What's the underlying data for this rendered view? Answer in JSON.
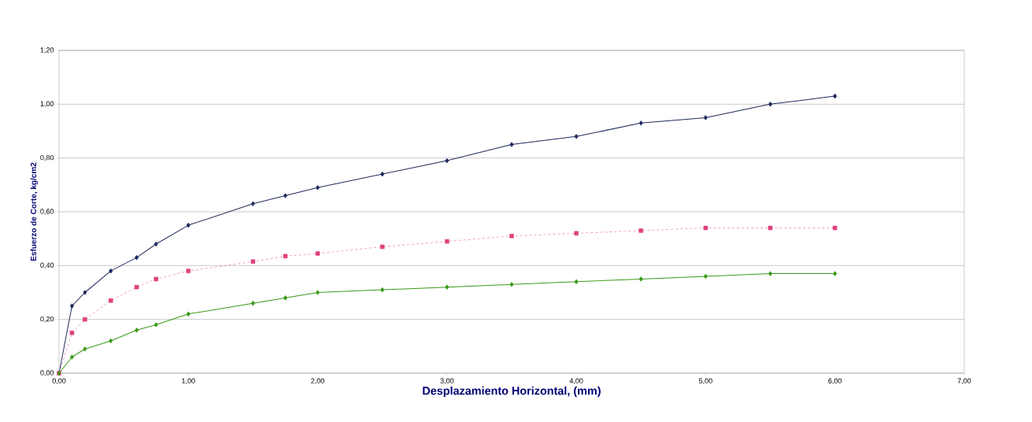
{
  "chart_data": {
    "type": "line",
    "xlabel": "Desplazamiento Horizontal,  (mm)",
    "ylabel": "Esfuerzo de Corte, kg/cm2",
    "x": [
      0,
      0.1,
      0.2,
      0.4,
      0.6,
      0.75,
      1,
      1.5,
      1.75,
      2,
      2.5,
      3,
      3.5,
      4,
      4.5,
      5,
      5.5,
      6
    ],
    "series": [
      {
        "color": "#1f2a5c",
        "marker": "diamond",
        "line_style": "solid",
        "values": [
          0,
          0.25,
          0.3,
          0.38,
          0.43,
          0.48,
          0.55,
          0.63,
          0.66,
          0.69,
          0.74,
          0.79,
          0.85,
          0.88,
          0.93,
          0.95,
          1.0,
          1.03
        ]
      },
      {
        "color": "#e0407f",
        "marker": "square",
        "line_style": "dashed",
        "values": [
          0,
          0.15,
          0.2,
          0.27,
          0.32,
          0.35,
          0.38,
          0.415,
          0.435,
          0.445,
          0.47,
          0.49,
          0.51,
          0.52,
          0.53,
          0.54,
          0.54,
          0.54
        ]
      },
      {
        "color": "#3a9a1a",
        "marker": "diamond",
        "line_style": "solid",
        "values": [
          0,
          0.06,
          0.09,
          0.12,
          0.16,
          0.18,
          0.22,
          0.26,
          0.28,
          0.3,
          0.31,
          0.32,
          0.33,
          0.34,
          0.35,
          0.36,
          0.37,
          0.37
        ]
      }
    ],
    "xlim": [
      0,
      7
    ],
    "ylim": [
      0,
      1.2
    ],
    "xticks": [
      {
        "value": 0,
        "label": "0,00"
      },
      {
        "value": 1,
        "label": "1,00"
      },
      {
        "value": 2,
        "label": "2,00"
      },
      {
        "value": 3,
        "label": "3,00"
      },
      {
        "value": 4,
        "label": "4,00"
      },
      {
        "value": 5,
        "label": "5,00"
      },
      {
        "value": 6,
        "label": "6,00"
      },
      {
        "value": 7,
        "label": "7,00"
      }
    ],
    "yticks": [
      {
        "value": 0,
        "label": "0,00"
      },
      {
        "value": 0.2,
        "label": "0,20"
      },
      {
        "value": 0.4,
        "label": "0,40"
      },
      {
        "value": 0.6,
        "label": "0,60"
      },
      {
        "value": 0.8,
        "label": "0,80"
      },
      {
        "value": 1.0,
        "label": "1,00"
      },
      {
        "value": 1.2,
        "label": "1,20"
      }
    ],
    "grid": "y"
  }
}
